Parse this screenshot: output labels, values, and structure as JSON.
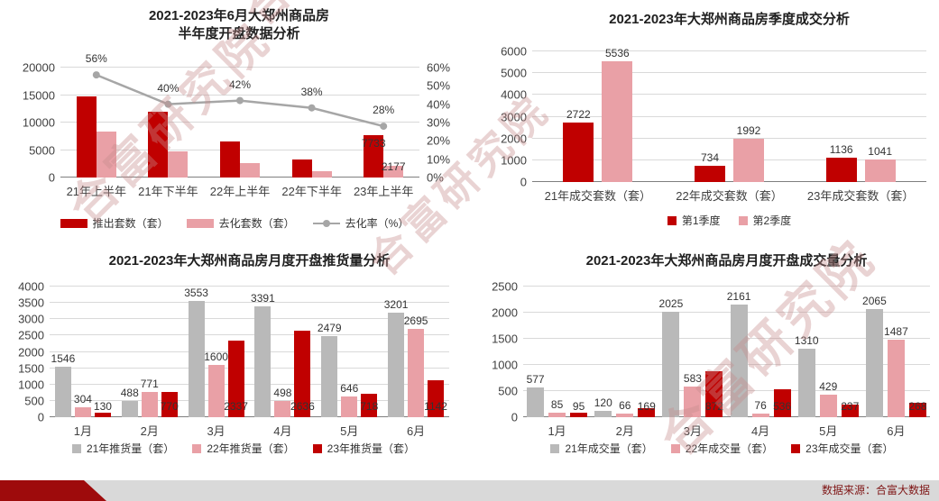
{
  "page": {
    "source_label": "数据来源：合富大数据",
    "watermark_text": "合富研究院"
  },
  "colors": {
    "dark_red": "#c00000",
    "pink": "#e9a0a6",
    "gray": "#b9b9b9",
    "line": "#a6a6a6"
  },
  "chart_data": [
    {
      "key": "half_year_opening_analysis",
      "type": "bar",
      "title": "2021-2023年6月大郑州商品房",
      "title2": "半年度开盘数据分析",
      "categories": [
        "21年上半年",
        "21年下半年",
        "22年上半年",
        "22年下半年",
        "23年上半年"
      ],
      "series": [
        {
          "name": "推出套数（套）",
          "color": "dark_red",
          "values": [
            14800,
            11900,
            6500,
            3200,
            7733
          ],
          "value_labels": [
            "",
            "",
            "",
            "",
            "7733"
          ]
        },
        {
          "name": "去化套数（套）",
          "color": "pink",
          "values": [
            8300,
            4800,
            2700,
            1200,
            2177
          ],
          "value_labels": [
            "",
            "",
            "",
            "",
            "2177"
          ]
        }
      ],
      "line_series": {
        "name": "去化率（%）",
        "type": "line",
        "color": "line",
        "values": [
          56,
          40,
          42,
          38,
          28
        ],
        "value_labels": [
          "56%",
          "40%",
          "42%",
          "38%",
          "28%"
        ]
      },
      "y_axis": {
        "min": 0,
        "max": 20000,
        "tick_labels": [
          "0",
          "5000",
          "10000",
          "15000",
          "20000"
        ]
      },
      "y2_axis": {
        "min": 0,
        "max": 60,
        "tick_labels": [
          "0%",
          "10%",
          "20%",
          "30%",
          "40%",
          "50%",
          "60%"
        ]
      },
      "grid": true,
      "legend_position": "bottom"
    },
    {
      "key": "quarterly_transaction_analysis",
      "type": "bar",
      "title": "2021-2023年大郑州商品房季度成交分析",
      "categories": [
        "21年成交套数（套）",
        "22年成交套数（套）",
        "23年成交套数（套）"
      ],
      "series": [
        {
          "name": "第1季度",
          "color": "dark_red",
          "values": [
            2722,
            734,
            1136
          ]
        },
        {
          "name": "第2季度",
          "color": "pink",
          "values": [
            5536,
            1992,
            1041
          ]
        }
      ],
      "y_axis": {
        "min": 0,
        "max": 6000,
        "tick_labels": [
          "0",
          "1000",
          "2000",
          "3000",
          "4000",
          "5000",
          "6000"
        ]
      },
      "grid": true,
      "legend_position": "bottom"
    },
    {
      "key": "monthly_supply_analysis",
      "type": "bar",
      "title": "2021-2023年大郑州商品房月度开盘推货量分析",
      "categories": [
        "1月",
        "2月",
        "3月",
        "4月",
        "5月",
        "6月"
      ],
      "series": [
        {
          "name": "21年推货量（套）",
          "color": "gray",
          "values": [
            1546,
            488,
            3553,
            3391,
            2479,
            3201
          ]
        },
        {
          "name": "22年推货量（套）",
          "color": "pink",
          "values": [
            304,
            771,
            1600,
            498,
            646,
            2695
          ]
        },
        {
          "name": "23年推货量（套）",
          "color": "dark_red",
          "values": [
            130,
            770,
            2337,
            2636,
            718,
            1142
          ]
        }
      ],
      "y_axis": {
        "min": 0,
        "max": 4000,
        "tick_labels": [
          "0",
          "500",
          "1000",
          "1500",
          "2000",
          "2500",
          "3000",
          "3500",
          "4000"
        ]
      },
      "grid": true,
      "legend_position": "bottom"
    },
    {
      "key": "monthly_sales_analysis",
      "type": "bar",
      "title": "2021-2023年大郑州商品房月度开盘成交量分析",
      "categories": [
        "1月",
        "2月",
        "3月",
        "4月",
        "5月",
        "6月"
      ],
      "series": [
        {
          "name": "21年成交量（套）",
          "color": "gray",
          "values": [
            577,
            120,
            2025,
            2161,
            1310,
            2065
          ]
        },
        {
          "name": "22年成交量（套）",
          "color": "pink",
          "values": [
            85,
            66,
            583,
            76,
            429,
            1487
          ]
        },
        {
          "name": "23年成交量（套）",
          "color": "dark_red",
          "values": [
            95,
            169,
            872,
            536,
            237,
            268
          ]
        }
      ],
      "y_axis": {
        "min": 0,
        "max": 2500,
        "tick_labels": [
          "0",
          "500",
          "1000",
          "1500",
          "2000",
          "2500"
        ]
      },
      "grid": true,
      "legend_position": "bottom"
    }
  ]
}
